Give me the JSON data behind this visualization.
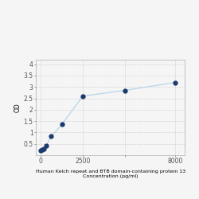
{
  "x": [
    0,
    78,
    156,
    312,
    625,
    1250,
    2500,
    5000,
    8000
  ],
  "y": [
    0.205,
    0.24,
    0.29,
    0.42,
    0.83,
    1.35,
    2.6,
    2.85,
    3.2
  ],
  "line_color": "#b8d4e8",
  "marker_color": "#1a3a6b",
  "marker_size": 3.5,
  "title_line1": "Human Kelch repeat and BTB domain-containing protein 13",
  "title_line2": "Concentration (pg/ml)",
  "ylabel": "OD",
  "xlim": [
    -300,
    8600
  ],
  "ylim": [
    0.0,
    4.2
  ],
  "yticks": [
    0.5,
    1.0,
    1.5,
    2.0,
    2.5,
    3.0,
    3.5,
    4.0
  ],
  "ytick_labels": [
    "0.5",
    "1",
    "1.5",
    "2",
    "2.5",
    "3",
    "3.5",
    "4"
  ],
  "xticks": [
    0,
    2500,
    5000,
    8000
  ],
  "xtick_labels": [
    "0",
    "2500",
    "",
    "8000"
  ],
  "background_color": "#f5f5f5",
  "plot_bg_color": "#f5f5f5",
  "grid_color": "#cccccc",
  "title_fontsize": 4.5,
  "axis_fontsize": 5.5,
  "ylabel_fontsize": 5.5
}
